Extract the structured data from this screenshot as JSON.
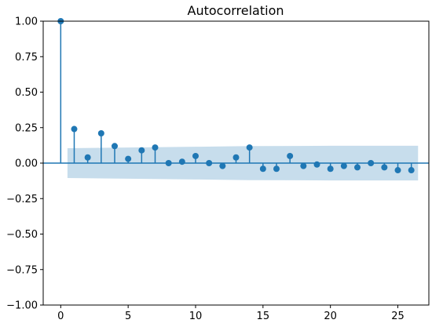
{
  "chart_data": {
    "type": "stem",
    "title": "Autocorrelation",
    "xlabel": "",
    "ylabel": "",
    "xlim": [
      -1.3,
      27.3
    ],
    "ylim": [
      -1.0,
      1.0
    ],
    "xticks": [
      0,
      5,
      10,
      15,
      20,
      25
    ],
    "xtick_labels": [
      "0",
      "5",
      "10",
      "15",
      "20",
      "25"
    ],
    "yticks": [
      1.0,
      0.75,
      0.5,
      0.25,
      0.0,
      -0.25,
      -0.5,
      -0.75,
      -1.0
    ],
    "ytick_labels": [
      "1.00",
      "0.75",
      "0.50",
      "0.25",
      "0.00",
      "−0.25",
      "−0.50",
      "−0.75",
      "−1.00"
    ],
    "grid": false,
    "lags": [
      0,
      1,
      2,
      3,
      4,
      5,
      6,
      7,
      8,
      9,
      10,
      11,
      12,
      13,
      14,
      15,
      16,
      17,
      18,
      19,
      20,
      21,
      22,
      23,
      24,
      25,
      26
    ],
    "acf": [
      1.0,
      0.24,
      0.04,
      0.21,
      0.12,
      0.03,
      0.09,
      0.11,
      0.0,
      0.01,
      0.05,
      0.0,
      -0.02,
      0.04,
      0.11,
      -0.04,
      -0.04,
      0.05,
      -0.02,
      -0.01,
      -0.04,
      -0.02,
      -0.03,
      0.0,
      -0.03,
      -0.05,
      -0.05
    ],
    "confidence_band": {
      "x": [
        0.5,
        5,
        10,
        14,
        15,
        20,
        25,
        26.5
      ],
      "upper": [
        0.105,
        0.11,
        0.115,
        0.12,
        0.12,
        0.122,
        0.122,
        0.122
      ],
      "lower": [
        -0.105,
        -0.11,
        -0.115,
        -0.12,
        -0.12,
        -0.122,
        -0.122,
        -0.122
      ]
    },
    "colors": {
      "stem": "#1f77b4",
      "band": "#1f77b4",
      "zero_line": "#1f77b4",
      "axes": "#000000"
    }
  }
}
